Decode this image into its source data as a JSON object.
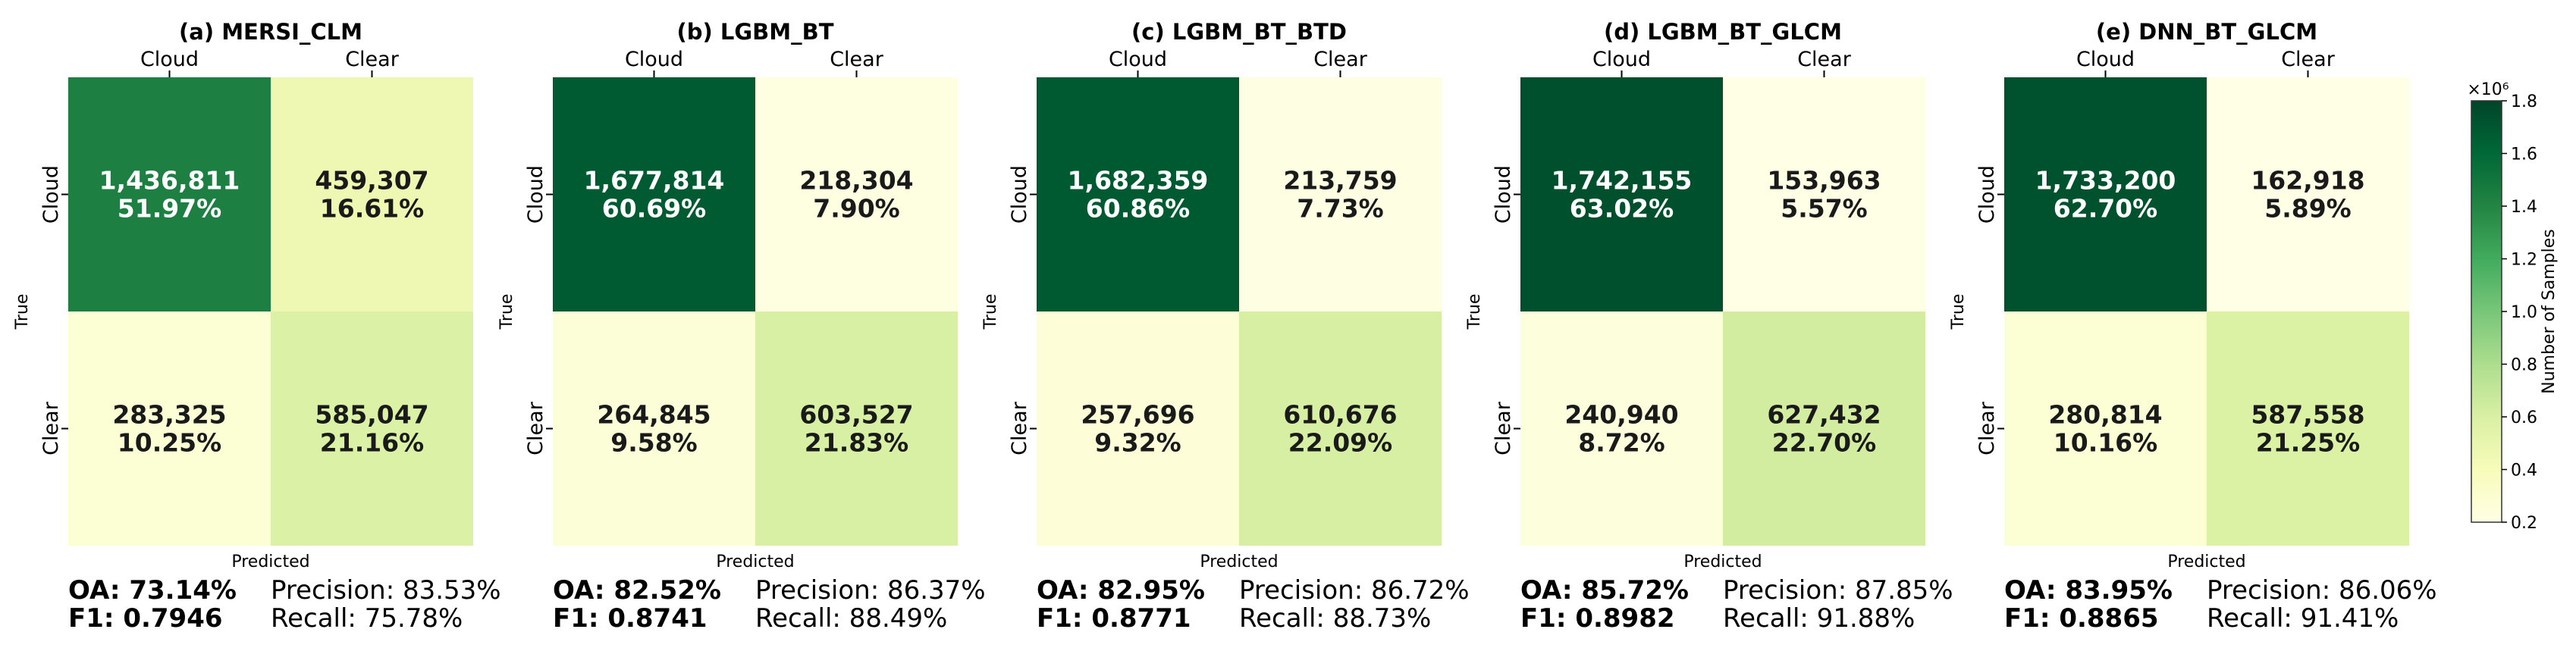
{
  "chart_data": {
    "type": "heatmap",
    "row_axis_label": "True",
    "col_axis_label": "Predicted",
    "classes": [
      "Cloud",
      "Clear"
    ],
    "colorbar": {
      "label": "Number of Samples",
      "exponent": "×10⁶",
      "range": [
        200000,
        1800000
      ],
      "ticks": [
        "0.2",
        "0.4",
        "0.6",
        "0.8",
        "1.0",
        "1.2",
        "1.4",
        "1.6",
        "1.8"
      ],
      "tick_values": [
        0.2,
        0.4,
        0.6,
        0.8,
        1.0,
        1.2,
        1.4,
        1.6,
        1.8
      ],
      "colors": [
        "#ffffe5",
        "#f7fcb9",
        "#d9f0a3",
        "#addd8e",
        "#78c679",
        "#41ab5d",
        "#238443",
        "#006837",
        "#004529"
      ]
    },
    "panels": [
      {
        "title": "(a) MERSI_CLM",
        "values": [
          [
            1436811,
            459307
          ],
          [
            283325,
            585047
          ]
        ],
        "counts": [
          [
            "1,436,811",
            "459,307"
          ],
          [
            "283,325",
            "585,047"
          ]
        ],
        "percents": [
          [
            "51.97%",
            "16.61%"
          ],
          [
            "10.25%",
            "21.16%"
          ]
        ],
        "oa": "OA: 73.14%",
        "f1": "F1: 0.7946",
        "precision": "Precision: 83.53%",
        "recall": "Recall: 75.78%"
      },
      {
        "title": "(b) LGBM_BT",
        "values": [
          [
            1677814,
            218304
          ],
          [
            264845,
            603527
          ]
        ],
        "counts": [
          [
            "1,677,814",
            "218,304"
          ],
          [
            "264,845",
            "603,527"
          ]
        ],
        "percents": [
          [
            "60.69%",
            "7.90%"
          ],
          [
            "9.58%",
            "21.83%"
          ]
        ],
        "oa": "OA: 82.52%",
        "f1": "F1: 0.8741",
        "precision": "Precision: 86.37%",
        "recall": "Recall: 88.49%"
      },
      {
        "title": "(c) LGBM_BT_BTD",
        "values": [
          [
            1682359,
            213759
          ],
          [
            257696,
            610676
          ]
        ],
        "counts": [
          [
            "1,682,359",
            "213,759"
          ],
          [
            "257,696",
            "610,676"
          ]
        ],
        "percents": [
          [
            "60.86%",
            "7.73%"
          ],
          [
            "9.32%",
            "22.09%"
          ]
        ],
        "oa": "OA: 82.95%",
        "f1": "F1: 0.8771",
        "precision": "Precision: 86.72%",
        "recall": "Recall: 88.73%"
      },
      {
        "title": "(d) LGBM_BT_GLCM",
        "values": [
          [
            1742155,
            153963
          ],
          [
            240940,
            627432
          ]
        ],
        "counts": [
          [
            "1,742,155",
            "153,963"
          ],
          [
            "240,940",
            "627,432"
          ]
        ],
        "percents": [
          [
            "63.02%",
            "5.57%"
          ],
          [
            "8.72%",
            "22.70%"
          ]
        ],
        "oa": "OA: 85.72%",
        "f1": "F1: 0.8982",
        "precision": "Precision: 87.85%",
        "recall": "Recall: 91.88%"
      },
      {
        "title": "(e) DNN_BT_GLCM",
        "values": [
          [
            1733200,
            162918
          ],
          [
            280814,
            587558
          ]
        ],
        "counts": [
          [
            "1,733,200",
            "162,918"
          ],
          [
            "280,814",
            "587,558"
          ]
        ],
        "percents": [
          [
            "62.70%",
            "5.89%"
          ],
          [
            "10.16%",
            "21.25%"
          ]
        ],
        "oa": "OA: 83.95%",
        "f1": "F1: 0.8865",
        "precision": "Precision: 86.06%",
        "recall": "Recall: 91.41%"
      }
    ]
  }
}
